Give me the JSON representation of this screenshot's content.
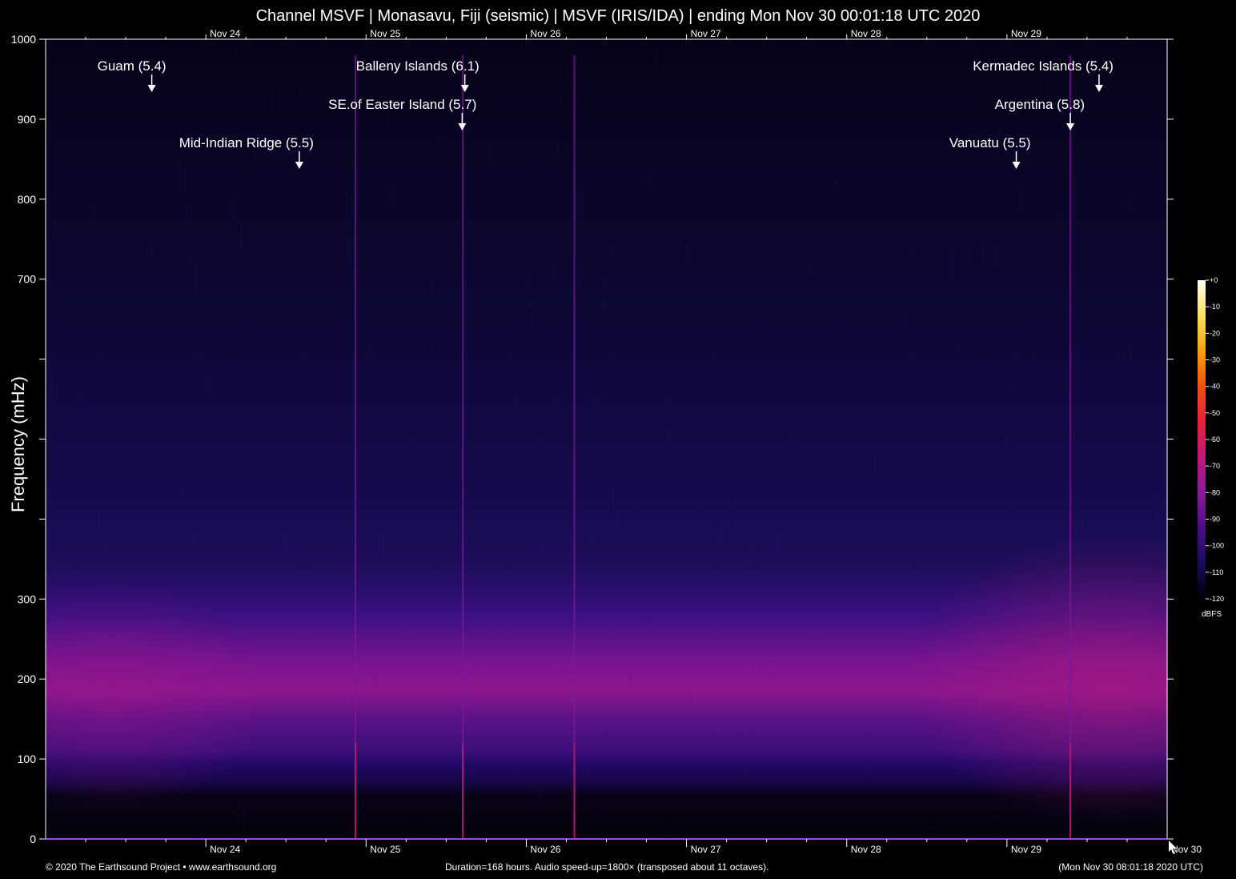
{
  "title": "Channel MSVF | Monasavu, Fiji (seismic) | MSVF (IRIS/IDA) | ending Mon Nov 30 00:01:18 UTC 2020",
  "footer": {
    "left": "© 2020 The Earthsound Project • www.earthsound.org",
    "center": "Duration=168 hours. Audio speed-up=1800× (transposed about 11 octaves).",
    "right": "(Mon Nov 30 08:01:18 2020 UTC)"
  },
  "colorbar": {
    "unit": "dBFS",
    "ticks": [
      "+0",
      "-10",
      "-20",
      "-30",
      "-40",
      "-50",
      "-60",
      "-70",
      "-80",
      "-90",
      "-100",
      "-110",
      "-120"
    ],
    "colors": [
      "#000005",
      "#1a0b5a",
      "#4a0c8a",
      "#8a1a9a",
      "#c0187a",
      "#e8203a",
      "#f05010",
      "#f8a010",
      "#fce060",
      "#fffff0"
    ]
  },
  "chart_data": {
    "type": "heatmap",
    "title": "Channel MSVF | Monasavu, Fiji (seismic) | MSVF (IRIS/IDA) | ending Mon Nov 30 00:01:18 UTC 2020",
    "ylabel": "Frequency (mHz)",
    "xlabel": "",
    "ylim": [
      0,
      1000
    ],
    "yticks": [
      {
        "value": 0,
        "label": "0"
      },
      {
        "value": 100,
        "label": "100"
      },
      {
        "value": 200,
        "label": "200"
      },
      {
        "value": 300,
        "label": "300"
      },
      {
        "value": 400,
        "label": ""
      },
      {
        "value": 500,
        "label": ""
      },
      {
        "value": 600,
        "label": ""
      },
      {
        "value": 700,
        "label": "700"
      },
      {
        "value": 800,
        "label": "800"
      },
      {
        "value": 900,
        "label": "900"
      },
      {
        "value": 1000,
        "label": "1000"
      }
    ],
    "xlim_hours": [
      0,
      168
    ],
    "x_axis_start": "Mon Nov 23 00:01:18 2020 UTC",
    "xticks_bottom": [
      {
        "hour": 24,
        "label": "Nov 24"
      },
      {
        "hour": 48,
        "label": "Nov 25"
      },
      {
        "hour": 72,
        "label": "Nov 26"
      },
      {
        "hour": 96,
        "label": "Nov 27"
      },
      {
        "hour": 120,
        "label": "Nov 28"
      },
      {
        "hour": 144,
        "label": "Nov 29"
      },
      {
        "hour": 168,
        "label": "Nov 30"
      }
    ],
    "xticks_top": [
      {
        "hour": 24,
        "label": "Nov 24"
      },
      {
        "hour": 48,
        "label": "Nov 25"
      },
      {
        "hour": 72,
        "label": "Nov 26"
      },
      {
        "hour": 96,
        "label": "Nov 27"
      },
      {
        "hour": 120,
        "label": "Nov 28"
      },
      {
        "hour": 144,
        "label": "Nov 29"
      }
    ],
    "events": [
      {
        "label": "Guam (5.4)",
        "hour": 15.9,
        "row": 0
      },
      {
        "label": "Mid-Indian Ridge (5.5)",
        "hour": 38.0,
        "row": 2
      },
      {
        "label": "Balleny Islands (6.1)",
        "hour": 62.8,
        "row": 0
      },
      {
        "label": "SE.of Easter Island (5.7)",
        "hour": 62.4,
        "row": 1
      },
      {
        "label": "Kermadec Islands (5.4)",
        "hour": 157.8,
        "row": 0
      },
      {
        "label": "Argentina (5.8)",
        "hour": 153.5,
        "row": 1
      },
      {
        "label": "Vanuatu (5.5)",
        "hour": 145.4,
        "row": 2
      }
    ],
    "spectral_features": [
      {
        "name": "energy band",
        "freq_center_mhz": 200,
        "freq_width_mhz": 100,
        "level_dbfs": -85
      },
      {
        "name": "low-frequency floor",
        "freq_from_mhz": 0,
        "freq_to_mhz": 55,
        "level_dbfs": -120
      }
    ],
    "vertical_lines_hours": [
      46.4,
      62.5,
      79.2,
      153.5
    ]
  }
}
